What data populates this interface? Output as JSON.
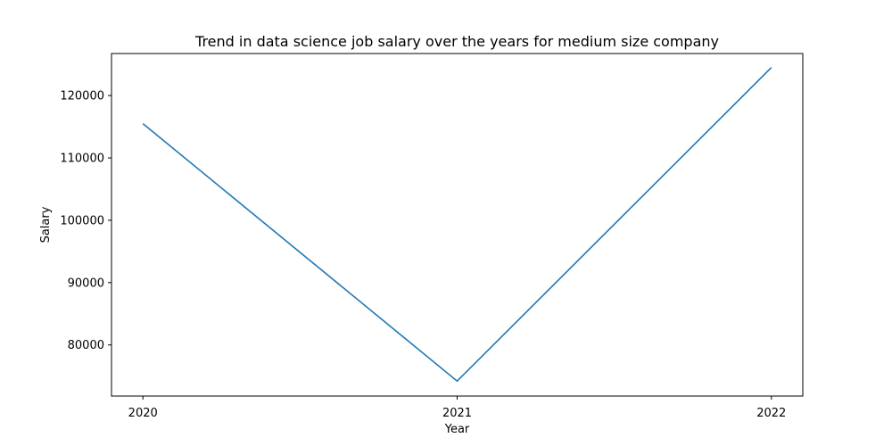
{
  "chart_data": {
    "type": "line",
    "title": "Trend in data science job salary over the years for medium size company",
    "xlabel": "Year",
    "ylabel": "Salary",
    "x": [
      "2020",
      "2021",
      "2022"
    ],
    "series": [
      {
        "values": [
          115500,
          74200,
          124500
        ],
        "color": "#1f77b4"
      }
    ],
    "xlim": [
      2019.9,
      2022.1
    ],
    "ylim": [
      71800,
      126750
    ],
    "yticks": [
      "80000",
      "90000",
      "100000",
      "110000",
      "120000"
    ],
    "grid": false,
    "legend": "none"
  }
}
